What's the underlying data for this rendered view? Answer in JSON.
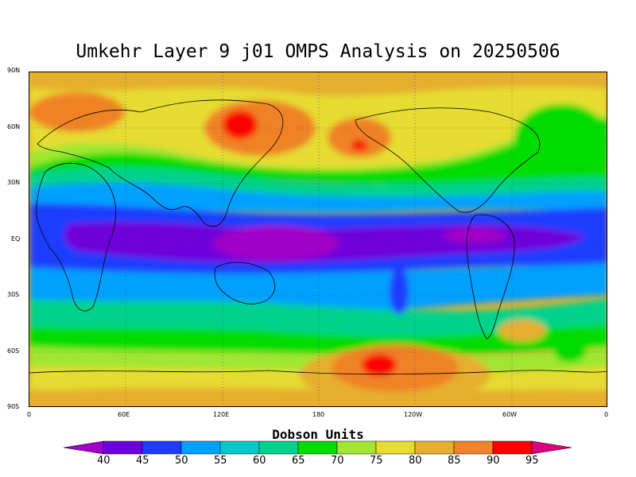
{
  "title": "Umkehr Layer 9 j01 OMPS Analysis on 20250506",
  "lat_labels": [
    "90N",
    "60N",
    "30N",
    "EQ",
    "30S",
    "60S",
    "90S"
  ],
  "lon_labels": [
    "0",
    "60E",
    "120E",
    "180",
    "120W",
    "60W",
    "0"
  ],
  "colorbar": {
    "title": "Dobson Units",
    "levels": [
      "40",
      "45",
      "50",
      "55",
      "60",
      "65",
      "70",
      "75",
      "80",
      "85",
      "90",
      "95"
    ],
    "colors": [
      "#a000c8",
      "#6e00dc",
      "#1e3cff",
      "#00a0ff",
      "#00c8c8",
      "#00d28c",
      "#00dc00",
      "#a0e632",
      "#e6dc32",
      "#e6af2d",
      "#f08228",
      "#fa0000",
      "#dc0080"
    ]
  }
}
